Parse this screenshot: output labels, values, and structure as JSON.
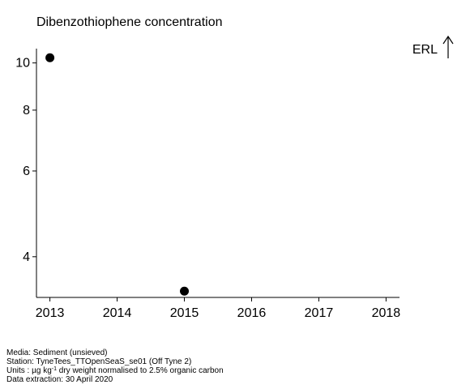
{
  "chart_data": {
    "type": "scatter",
    "title": "Dibenzothiophene concentration",
    "xlabel": "",
    "ylabel": "",
    "y_scale": "log",
    "xlim": [
      2012.8,
      2018.2
    ],
    "ylim": [
      3.3,
      10.7
    ],
    "x_ticks": [
      2013,
      2014,
      2015,
      2016,
      2017,
      2018
    ],
    "x_tick_labels": [
      "2013",
      "2014",
      "2015",
      "2016",
      "2017",
      "2018"
    ],
    "y_ticks": [
      4,
      6,
      8,
      10
    ],
    "y_tick_labels": [
      "4",
      "6",
      "8",
      "10"
    ],
    "points": [
      {
        "x": 2013,
        "y": 10.25
      },
      {
        "x": 2015,
        "y": 3.4
      }
    ],
    "reference": {
      "label": "ERL",
      "direction": "above"
    },
    "grid": false,
    "marker_color": "#000000"
  },
  "footer": {
    "media": "Media: Sediment (unsieved)",
    "station": "Station: TyneTees_TTOpenSeaS_se01 (Off Tyne 2)",
    "units_prefix": "Units : µg kg",
    "units_sup": "-1",
    "units_suffix": " dry weight normalised to 2.5% organic carbon",
    "extraction": "Data extraction: 30 April 2020"
  }
}
